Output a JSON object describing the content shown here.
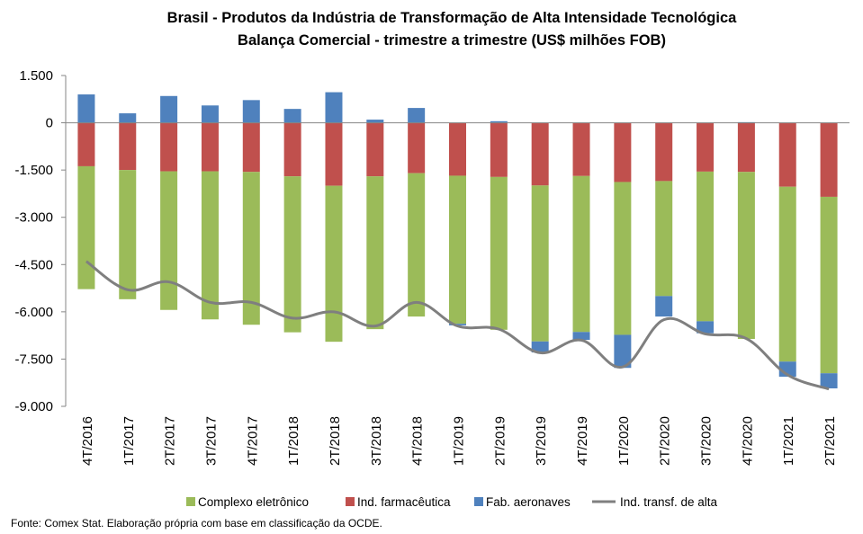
{
  "chart_data": {
    "type": "bar",
    "title": "Brasil - Produtos da Indústria de Transformação  de Alta Intensidade Tecnológica",
    "subtitle": "Balança Comercial - trimestre a trimestre (US$ milhões FOB)",
    "xlabel": "",
    "ylabel": "",
    "ylim": [
      -9000,
      1500
    ],
    "yticks": [
      1500,
      0,
      -1500,
      -3000,
      -4500,
      -6000,
      -7500,
      -9000
    ],
    "ytick_labels": [
      "1.500",
      "0",
      "-1.500",
      "-3.000",
      "-4.500",
      "-6.000",
      "-7.500",
      "-9.000"
    ],
    "grid": false,
    "legend_position": "bottom",
    "categories": [
      "4T/2016",
      "1T/2017",
      "2T/2017",
      "3T/2017",
      "4T/2017",
      "1T/2018",
      "2T/2018",
      "3T/2018",
      "4T/2018",
      "1T/2019",
      "2T/2019",
      "3T/2019",
      "4T/2019",
      "1T/2020",
      "2T/2020",
      "3T/2020",
      "4T/2020",
      "1T/2021",
      "2T/2021"
    ],
    "series": [
      {
        "name": "Complexo eletrônico",
        "kind": "stacked-bar",
        "color": "#9BBB59",
        "values": [
          -3900,
          -4100,
          -4400,
          -4700,
          -4850,
          -4950,
          -4950,
          -4850,
          -4550,
          -4700,
          -4850,
          -4950,
          -4950,
          -4850,
          -3650,
          -4750,
          -5300,
          -5550,
          -5600
        ]
      },
      {
        "name": "Ind. farmacêutica",
        "kind": "stacked-bar",
        "color": "#C0504D",
        "values": [
          -1380,
          -1500,
          -1540,
          -1540,
          -1560,
          -1700,
          -2000,
          -1700,
          -1600,
          -1680,
          -1720,
          -1990,
          -1690,
          -1880,
          -1850,
          -1550,
          -1560,
          -2030,
          -2350
        ]
      },
      {
        "name": "Fab. aeronaves",
        "kind": "stacked-bar",
        "color": "#4F81BD",
        "values": [
          900,
          300,
          850,
          550,
          720,
          440,
          970,
          100,
          470,
          -50,
          50,
          -350,
          -250,
          -1050,
          -650,
          -380,
          20,
          -480,
          -480
        ]
      },
      {
        "name": "Ind. transf. de alta",
        "kind": "line",
        "color": "#7F7F7F",
        "values": [
          -4400,
          -5300,
          -5050,
          -5700,
          -5700,
          -6200,
          -6000,
          -6450,
          -5700,
          -6450,
          -6550,
          -7300,
          -6900,
          -7750,
          -6250,
          -6700,
          -6850,
          -8000,
          -8450
        ]
      }
    ]
  },
  "source_note": "Fonte:  Comex Stat. Elaboração própria com base em classificação da OCDE."
}
